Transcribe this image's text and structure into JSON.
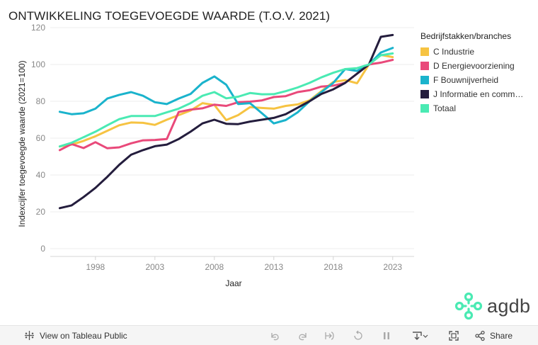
{
  "chart_data": {
    "type": "line",
    "title": "ONTWIKKELING TOEGEVOEGDE WAARDE (T.O.V. 2021)",
    "xlabel": "Jaar",
    "ylabel": "Indexcijfer toegevoegde waarde (2021=100)",
    "xlim": [
      1995,
      2023
    ],
    "ylim": [
      0,
      120
    ],
    "xticks": [
      1998,
      2003,
      2008,
      2013,
      2018,
      2023
    ],
    "yticks": [
      0,
      20,
      40,
      60,
      80,
      100,
      120
    ],
    "legend_title": "Bedrijfstakken/branches",
    "x": [
      1995,
      1996,
      1997,
      1998,
      1999,
      2000,
      2001,
      2002,
      2003,
      2004,
      2005,
      2006,
      2007,
      2008,
      2009,
      2010,
      2011,
      2012,
      2013,
      2014,
      2015,
      2016,
      2017,
      2018,
      2019,
      2020,
      2021,
      2022,
      2023
    ],
    "series": [
      {
        "name": "C Industrie",
        "color": "#F6C342",
        "values": [
          55.5,
          56.5,
          58.5,
          61,
          64,
          67,
          68.5,
          68.3,
          67.2,
          70,
          72.5,
          75,
          79,
          78,
          69.8,
          72.5,
          76.8,
          76.4,
          76,
          77.5,
          78.3,
          80.5,
          85.5,
          90.5,
          91.5,
          89.8,
          100,
          105.2,
          104
        ]
      },
      {
        "name": "D Energievoorziening",
        "color": "#E9497A",
        "values": [
          53.5,
          56.8,
          54.6,
          57.8,
          54.5,
          55,
          57.2,
          58.8,
          59,
          59.5,
          74.2,
          75.5,
          76.2,
          78.2,
          77.5,
          79.5,
          79.8,
          80.5,
          82.3,
          82.8,
          85,
          86,
          88,
          88.5,
          90,
          95,
          100,
          101,
          102.5
        ]
      },
      {
        "name": "F Bouwnijverheid",
        "color": "#1AB3CC",
        "values": [
          74.3,
          73,
          73.5,
          76,
          81.5,
          83.5,
          85,
          83,
          79.5,
          78.5,
          81.5,
          84,
          90,
          93.5,
          89,
          78.5,
          79,
          73.5,
          68,
          69.8,
          74,
          80,
          85,
          90,
          97.5,
          96.5,
          100,
          106.5,
          109
        ]
      },
      {
        "name": "J Informatie en communicatie",
        "color": "#241D3D",
        "values": [
          22,
          23.5,
          28,
          33,
          39,
          45.5,
          51,
          53.5,
          55.6,
          56.5,
          59.5,
          63.5,
          68,
          70,
          67.8,
          67.6,
          69,
          70,
          71,
          73,
          76.5,
          80,
          84,
          86.5,
          90,
          95,
          100,
          115,
          116
        ]
      },
      {
        "name": "Totaal",
        "color": "#4AEAB3",
        "values": [
          55.5,
          57.5,
          60.5,
          63.5,
          67,
          70.3,
          72,
          72,
          72,
          74,
          76,
          79,
          83,
          85,
          81.6,
          82.5,
          84.5,
          83.8,
          83.9,
          85.5,
          87.5,
          90,
          93,
          95.5,
          97.5,
          98,
          100,
          105,
          106
        ]
      }
    ]
  },
  "legend": {
    "title": "Bedrijfstakken/branches",
    "items": [
      {
        "label": "C Industrie",
        "color": "#F6C342"
      },
      {
        "label": "D Energievoorziening",
        "color": "#E9497A"
      },
      {
        "label": "F Bouwnijverheid",
        "color": "#1AB3CC"
      },
      {
        "label": "J Informatie en communicatie",
        "color": "#241D3D"
      },
      {
        "label": "Totaal",
        "color": "#4AEAB3"
      }
    ]
  },
  "logo": {
    "text": "agdb",
    "color": "#4AEAB3"
  },
  "toolbar": {
    "view_label": "View on Tableau Public",
    "share_label": "Share",
    "icons": [
      "undo-icon",
      "redo-icon",
      "revert-icon",
      "pause-icon",
      "download-icon",
      "fullscreen-icon",
      "share-icon"
    ]
  }
}
